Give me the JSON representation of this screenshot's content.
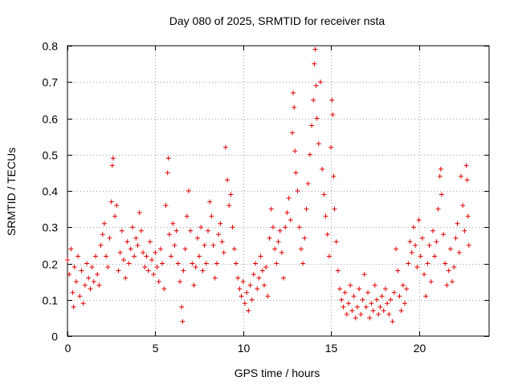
{
  "chart_data": {
    "type": "scatter",
    "title": "Day 080 of 2025, SRMTID for receiver nsta",
    "xlabel": "GPS time / hours",
    "ylabel": "SRMTID / TECUs",
    "xlim": [
      0,
      24
    ],
    "ylim": [
      0,
      0.8
    ],
    "xticks": [
      0,
      5,
      10,
      15,
      20
    ],
    "xtick_labels": [
      "0",
      "5",
      "10",
      "15",
      "20"
    ],
    "yticks": [
      0,
      0.1,
      0.2,
      0.3,
      0.4,
      0.5,
      0.6,
      0.7,
      0.8
    ],
    "ytick_labels": [
      "0",
      "0.1",
      "0.2",
      "0.3",
      "0.4",
      "0.5",
      "0.6",
      "0.7",
      "0.8"
    ],
    "grid": true,
    "marker": "+",
    "color": "#e00000",
    "series": [
      {
        "name": "SRMTID",
        "points": [
          [
            0.0,
            0.21
          ],
          [
            0.1,
            0.17
          ],
          [
            0.2,
            0.24
          ],
          [
            0.3,
            0.12
          ],
          [
            0.35,
            0.08
          ],
          [
            0.4,
            0.19
          ],
          [
            0.5,
            0.15
          ],
          [
            0.6,
            0.22
          ],
          [
            0.7,
            0.11
          ],
          [
            0.8,
            0.18
          ],
          [
            0.9,
            0.09
          ],
          [
            1.0,
            0.14
          ],
          [
            1.1,
            0.2
          ],
          [
            1.2,
            0.16
          ],
          [
            1.3,
            0.13
          ],
          [
            1.4,
            0.19
          ],
          [
            1.5,
            0.15
          ],
          [
            1.6,
            0.22
          ],
          [
            1.7,
            0.17
          ],
          [
            1.8,
            0.14
          ],
          [
            1.9,
            0.25
          ],
          [
            2.0,
            0.28
          ],
          [
            2.1,
            0.31
          ],
          [
            2.2,
            0.22
          ],
          [
            2.3,
            0.19
          ],
          [
            2.4,
            0.27
          ],
          [
            2.5,
            0.37
          ],
          [
            2.55,
            0.47
          ],
          [
            2.6,
            0.49
          ],
          [
            2.7,
            0.33
          ],
          [
            2.8,
            0.36
          ],
          [
            2.9,
            0.18
          ],
          [
            3.0,
            0.23
          ],
          [
            3.1,
            0.29
          ],
          [
            3.2,
            0.21
          ],
          [
            3.3,
            0.16
          ],
          [
            3.4,
            0.26
          ],
          [
            3.5,
            0.2
          ],
          [
            3.6,
            0.24
          ],
          [
            3.7,
            0.3
          ],
          [
            3.8,
            0.22
          ],
          [
            3.9,
            0.27
          ],
          [
            4.0,
            0.25
          ],
          [
            4.1,
            0.34
          ],
          [
            4.2,
            0.29
          ],
          [
            4.3,
            0.23
          ],
          [
            4.4,
            0.19
          ],
          [
            4.5,
            0.22
          ],
          [
            4.6,
            0.18
          ],
          [
            4.7,
            0.26
          ],
          [
            4.8,
            0.21
          ],
          [
            4.9,
            0.17
          ],
          [
            5.0,
            0.23
          ],
          [
            5.1,
            0.19
          ],
          [
            5.2,
            0.15
          ],
          [
            5.3,
            0.24
          ],
          [
            5.4,
            0.2
          ],
          [
            5.5,
            0.13
          ],
          [
            5.6,
            0.36
          ],
          [
            5.7,
            0.45
          ],
          [
            5.75,
            0.49
          ],
          [
            5.8,
            0.28
          ],
          [
            5.9,
            0.22
          ],
          [
            6.0,
            0.31
          ],
          [
            6.1,
            0.25
          ],
          [
            6.2,
            0.29
          ],
          [
            6.3,
            0.2
          ],
          [
            6.4,
            0.15
          ],
          [
            6.5,
            0.08
          ],
          [
            6.55,
            0.04
          ],
          [
            6.6,
            0.18
          ],
          [
            6.7,
            0.24
          ],
          [
            6.8,
            0.33
          ],
          [
            6.9,
            0.4
          ],
          [
            7.0,
            0.29
          ],
          [
            7.1,
            0.2
          ],
          [
            7.2,
            0.14
          ],
          [
            7.3,
            0.19
          ],
          [
            7.4,
            0.27
          ],
          [
            7.5,
            0.22
          ],
          [
            7.6,
            0.3
          ],
          [
            7.7,
            0.18
          ],
          [
            7.8,
            0.25
          ],
          [
            7.9,
            0.2
          ],
          [
            8.0,
            0.29
          ],
          [
            8.1,
            0.37
          ],
          [
            8.2,
            0.33
          ],
          [
            8.3,
            0.25
          ],
          [
            8.4,
            0.16
          ],
          [
            8.5,
            0.2
          ],
          [
            8.6,
            0.28
          ],
          [
            8.7,
            0.31
          ],
          [
            8.8,
            0.26
          ],
          [
            8.9,
            0.23
          ],
          [
            9.0,
            0.52
          ],
          [
            9.1,
            0.43
          ],
          [
            9.2,
            0.36
          ],
          [
            9.3,
            0.39
          ],
          [
            9.4,
            0.3
          ],
          [
            9.5,
            0.24
          ],
          [
            9.6,
            0.2
          ],
          [
            9.7,
            0.16
          ],
          [
            9.8,
            0.13
          ],
          [
            9.9,
            0.11
          ],
          [
            10.0,
            0.15
          ],
          [
            10.1,
            0.09
          ],
          [
            10.2,
            0.12
          ],
          [
            10.3,
            0.07
          ],
          [
            10.4,
            0.14
          ],
          [
            10.5,
            0.1
          ],
          [
            10.6,
            0.17
          ],
          [
            10.7,
            0.2
          ],
          [
            10.8,
            0.13
          ],
          [
            10.9,
            0.16
          ],
          [
            11.0,
            0.22
          ],
          [
            11.1,
            0.18
          ],
          [
            11.2,
            0.14
          ],
          [
            11.3,
            0.19
          ],
          [
            11.4,
            0.11
          ],
          [
            11.5,
            0.27
          ],
          [
            11.6,
            0.35
          ],
          [
            11.7,
            0.3
          ],
          [
            11.8,
            0.24
          ],
          [
            11.9,
            0.2
          ],
          [
            12.0,
            0.26
          ],
          [
            12.1,
            0.29
          ],
          [
            12.2,
            0.23
          ],
          [
            12.3,
            0.16
          ],
          [
            12.4,
            0.3
          ],
          [
            12.5,
            0.34
          ],
          [
            12.6,
            0.38
          ],
          [
            12.7,
            0.32
          ],
          [
            12.8,
            0.56
          ],
          [
            12.85,
            0.67
          ],
          [
            12.9,
            0.63
          ],
          [
            12.95,
            0.51
          ],
          [
            13.0,
            0.45
          ],
          [
            13.1,
            0.4
          ],
          [
            13.2,
            0.3
          ],
          [
            13.3,
            0.24
          ],
          [
            13.4,
            0.2
          ],
          [
            13.5,
            0.27
          ],
          [
            13.6,
            0.35
          ],
          [
            13.7,
            0.42
          ],
          [
            13.8,
            0.5
          ],
          [
            13.9,
            0.58
          ],
          [
            14.0,
            0.65
          ],
          [
            14.05,
            0.75
          ],
          [
            14.1,
            0.79
          ],
          [
            14.15,
            0.69
          ],
          [
            14.2,
            0.6
          ],
          [
            14.3,
            0.53
          ],
          [
            14.4,
            0.7
          ],
          [
            14.5,
            0.46
          ],
          [
            14.6,
            0.39
          ],
          [
            14.7,
            0.33
          ],
          [
            14.8,
            0.28
          ],
          [
            14.9,
            0.22
          ],
          [
            15.0,
            0.52
          ],
          [
            15.05,
            0.65
          ],
          [
            15.1,
            0.61
          ],
          [
            15.15,
            0.44
          ],
          [
            15.2,
            0.35
          ],
          [
            15.3,
            0.26
          ],
          [
            15.4,
            0.18
          ],
          [
            15.5,
            0.13
          ],
          [
            15.6,
            0.1
          ],
          [
            15.7,
            0.08
          ],
          [
            15.8,
            0.12
          ],
          [
            15.9,
            0.06
          ],
          [
            16.0,
            0.09
          ],
          [
            16.1,
            0.14
          ],
          [
            16.2,
            0.07
          ],
          [
            16.3,
            0.11
          ],
          [
            16.4,
            0.05
          ],
          [
            16.5,
            0.08
          ],
          [
            16.6,
            0.13
          ],
          [
            16.7,
            0.06
          ],
          [
            16.8,
            0.1
          ],
          [
            16.9,
            0.17
          ],
          [
            17.0,
            0.08
          ],
          [
            17.1,
            0.12
          ],
          [
            17.2,
            0.05
          ],
          [
            17.3,
            0.09
          ],
          [
            17.4,
            0.07
          ],
          [
            17.5,
            0.14
          ],
          [
            17.6,
            0.1
          ],
          [
            17.7,
            0.06
          ],
          [
            17.8,
            0.08
          ],
          [
            17.9,
            0.11
          ],
          [
            18.0,
            0.07
          ],
          [
            18.1,
            0.13
          ],
          [
            18.2,
            0.09
          ],
          [
            18.3,
            0.06
          ],
          [
            18.4,
            0.1
          ],
          [
            18.5,
            0.04
          ],
          [
            18.6,
            0.12
          ],
          [
            18.7,
            0.24
          ],
          [
            18.8,
            0.18
          ],
          [
            18.9,
            0.11
          ],
          [
            19.0,
            0.07
          ],
          [
            19.1,
            0.14
          ],
          [
            19.2,
            0.09
          ],
          [
            19.3,
            0.13
          ],
          [
            19.4,
            0.2
          ],
          [
            19.5,
            0.26
          ],
          [
            19.6,
            0.23
          ],
          [
            19.7,
            0.3
          ],
          [
            19.8,
            0.25
          ],
          [
            19.9,
            0.19
          ],
          [
            20.0,
            0.32
          ],
          [
            20.1,
            0.22
          ],
          [
            20.2,
            0.27
          ],
          [
            20.3,
            0.17
          ],
          [
            20.4,
            0.11
          ],
          [
            20.5,
            0.2
          ],
          [
            20.6,
            0.25
          ],
          [
            20.7,
            0.15
          ],
          [
            20.8,
            0.29
          ],
          [
            20.9,
            0.22
          ],
          [
            21.0,
            0.26
          ],
          [
            21.1,
            0.35
          ],
          [
            21.2,
            0.44
          ],
          [
            21.25,
            0.46
          ],
          [
            21.3,
            0.39
          ],
          [
            21.4,
            0.28
          ],
          [
            21.5,
            0.2
          ],
          [
            21.6,
            0.14
          ],
          [
            21.7,
            0.18
          ],
          [
            21.8,
            0.24
          ],
          [
            21.9,
            0.15
          ],
          [
            22.0,
            0.19
          ],
          [
            22.1,
            0.27
          ],
          [
            22.2,
            0.31
          ],
          [
            22.3,
            0.23
          ],
          [
            22.4,
            0.44
          ],
          [
            22.5,
            0.36
          ],
          [
            22.6,
            0.29
          ],
          [
            22.7,
            0.47
          ],
          [
            22.75,
            0.43
          ],
          [
            22.8,
            0.33
          ],
          [
            22.85,
            0.25
          ]
        ]
      }
    ]
  }
}
